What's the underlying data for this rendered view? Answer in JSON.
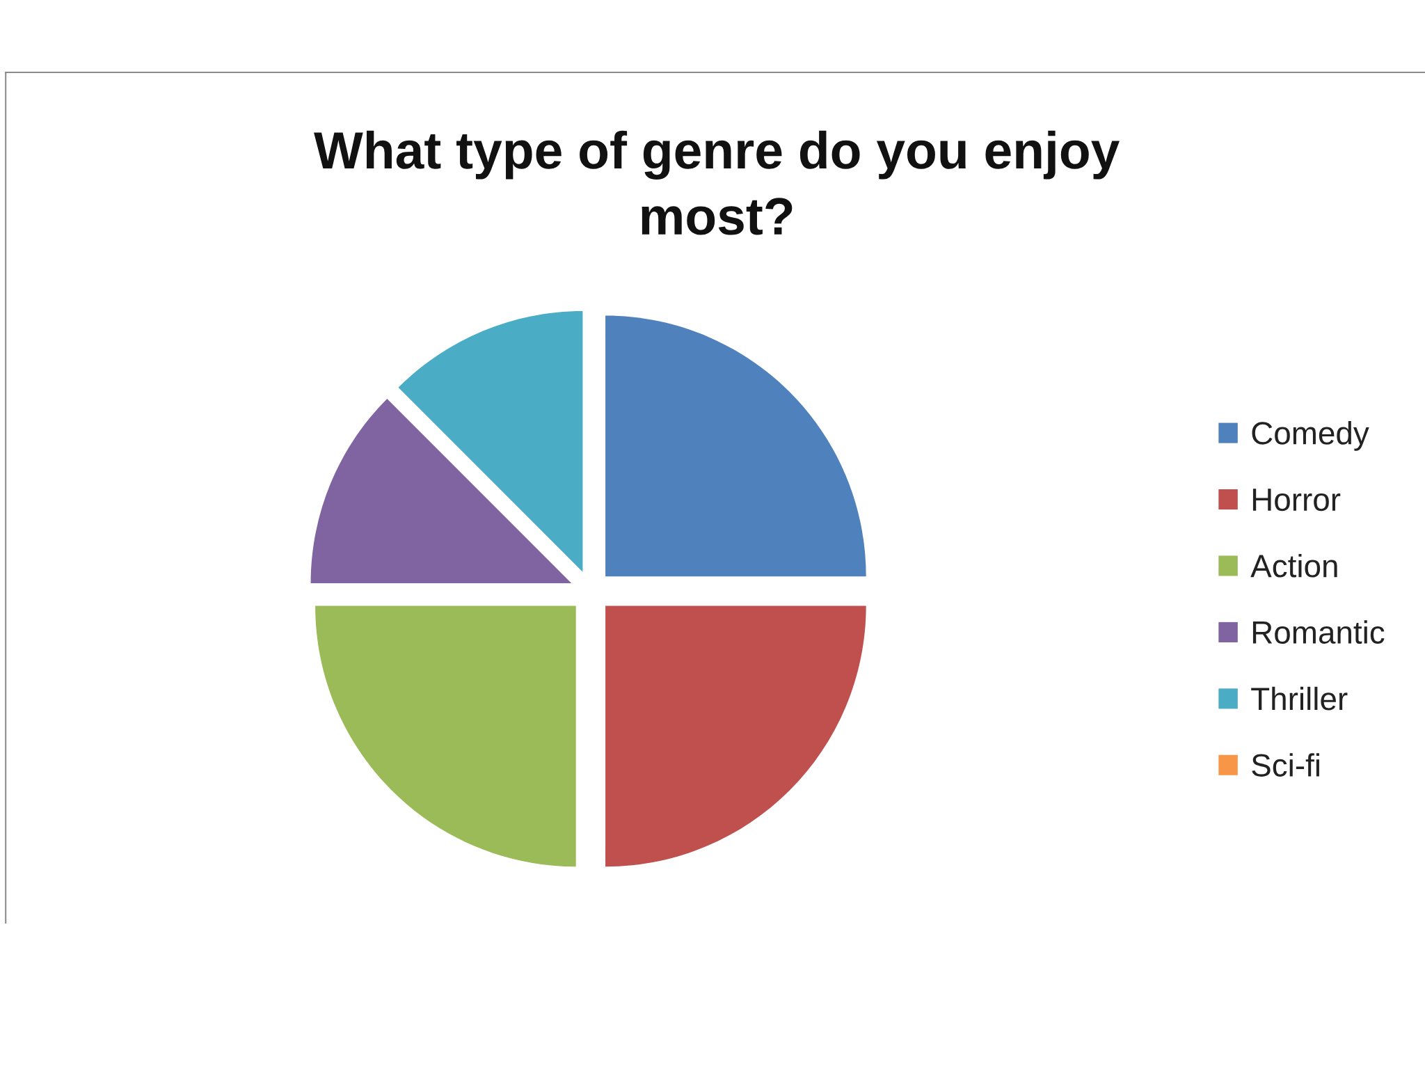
{
  "chart_data": {
    "type": "pie",
    "title": "What type of genre do you enjoy\nmost?",
    "categories": [
      "Comedy",
      "Horror",
      "Action",
      "Romantic",
      "Thriller",
      "Sci-fi"
    ],
    "values": [
      25,
      25,
      25,
      12.5,
      12.5,
      0
    ],
    "colors": [
      "#4f81bd",
      "#c0504d",
      "#9bbb59",
      "#8064a2",
      "#4bacc6",
      "#f79646"
    ],
    "legend": "right"
  }
}
